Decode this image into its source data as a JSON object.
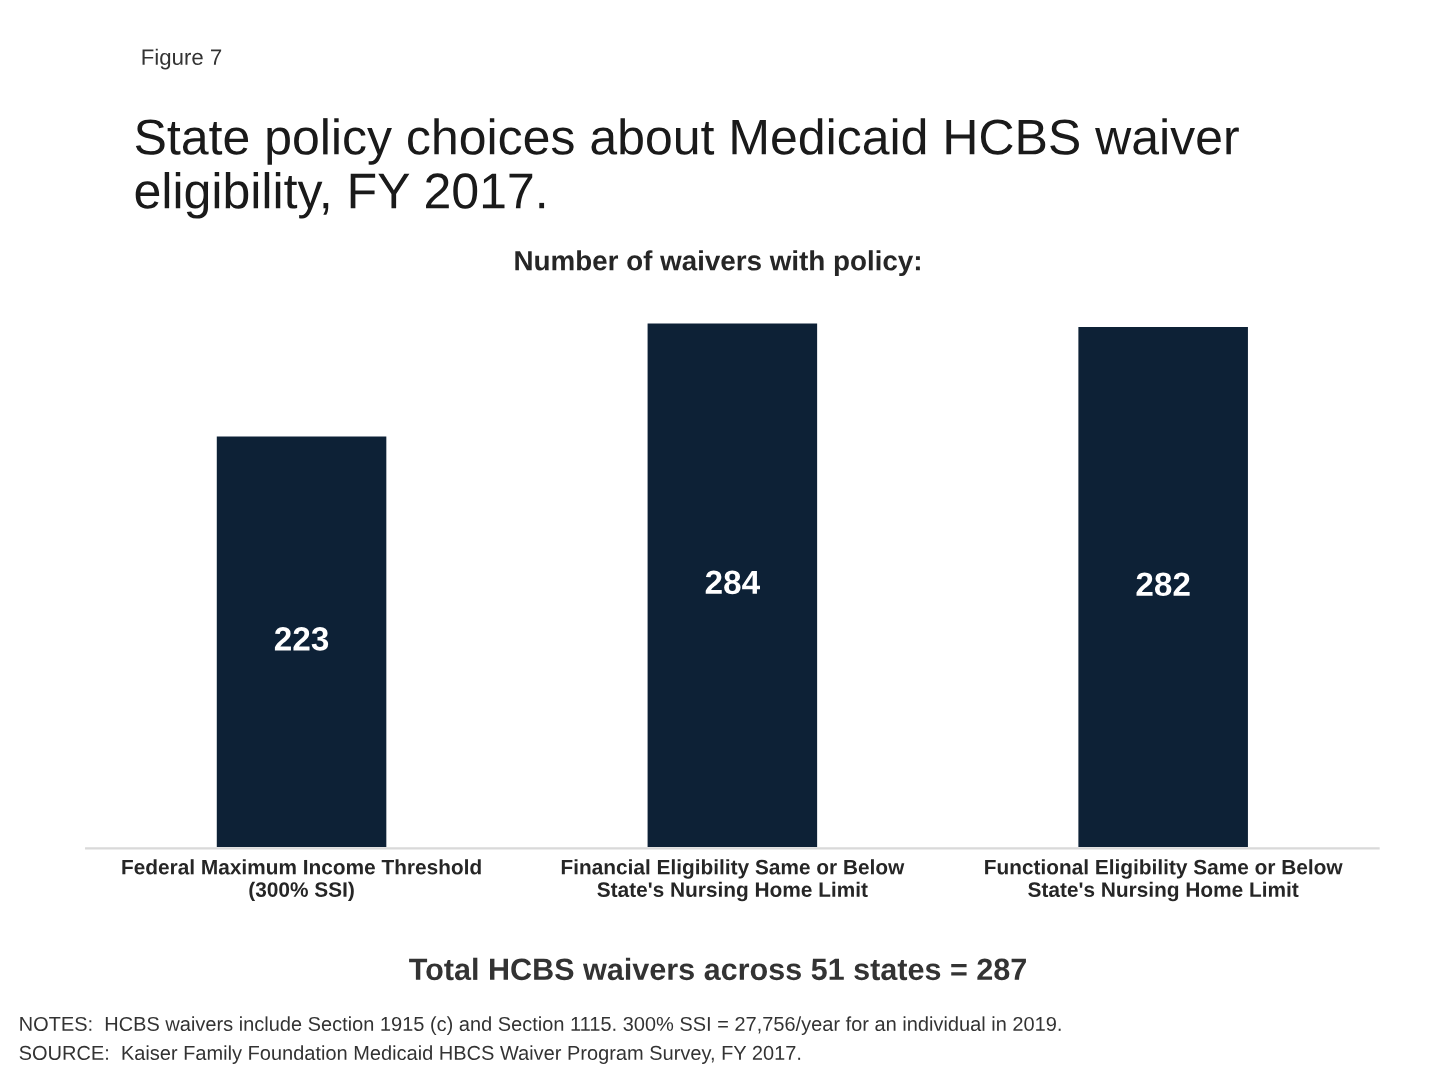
{
  "chart_data": {
    "type": "bar",
    "title": "State policy choices about Medicaid HCBS waiver eligibility, FY 2017.",
    "subtitle": "Number of waivers with policy:",
    "categories": [
      "Federal Maximum Income Threshold (300% SSI)",
      "Financial Eligibility Same or Below State's Nursing Home Limit",
      "Functional Eligibility Same or Below State's Nursing Home Limit"
    ],
    "values": [
      223,
      284,
      282
    ],
    "color": "#0d2136",
    "data_labels": true,
    "grid": false,
    "legend": false,
    "annotations": [
      "Figure 7",
      "Total HCBS waivers across 51 states = 287",
      "NOTES:  HCBS waivers include Section 1915 (c) and Section 1115. 300% SSI = 27,756/year for an individual in 2019.",
      "SOURCE:  Kaiser Family Foundation Medicaid HBCS Waiver Program Survey, FY 2017."
    ]
  }
}
